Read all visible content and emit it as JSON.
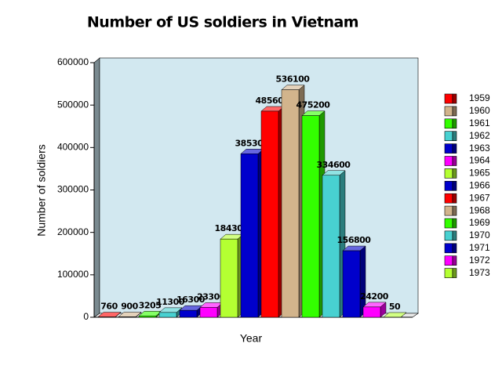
{
  "chart_data": {
    "type": "bar3d",
    "title": "Number of US soldiers in Vietnam",
    "x_label": "Year",
    "y_label": "Number of soldiers",
    "categories": [
      "1959",
      "1960",
      "1961",
      "1962",
      "1963",
      "1964",
      "1965",
      "1966",
      "1967",
      "1968",
      "1969",
      "1970",
      "1971",
      "1972",
      "1973"
    ],
    "values": [
      760,
      900,
      3205,
      11300,
      16300,
      23300,
      184300,
      385300,
      485600,
      536100,
      475200,
      334600,
      156800,
      24200,
      50
    ],
    "colors": [
      "#ff0000",
      "#d2b48c",
      "#33ff00",
      "#48d1d1",
      "#0000cc",
      "#ff00ff",
      "#b4ff32",
      "#0000cc",
      "#ff0000",
      "#d2b48c",
      "#33ff00",
      "#48d1d1",
      "#0000cc",
      "#ff00ff",
      "#b4ff32"
    ],
    "ylim": [
      0,
      600000
    ],
    "yticks": [
      0,
      100000,
      200000,
      300000,
      400000,
      500000,
      600000
    ],
    "grid": false
  }
}
